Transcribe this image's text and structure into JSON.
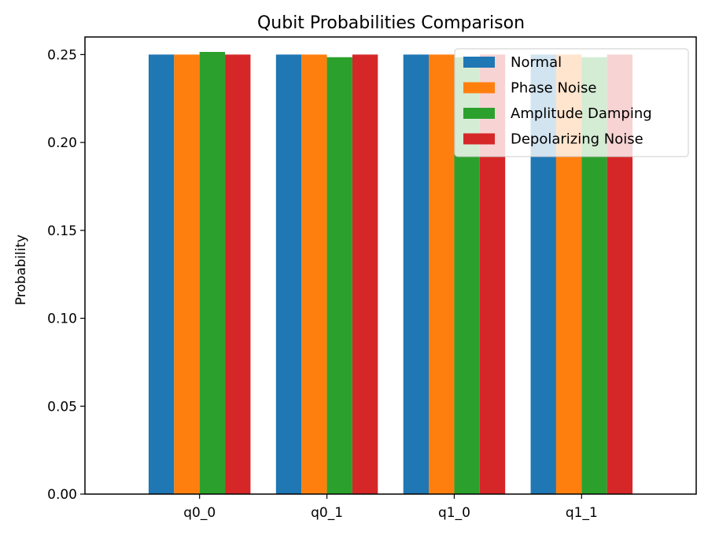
{
  "chart_data": {
    "type": "bar",
    "title": "Qubit Probabilities Comparison",
    "xlabel": "",
    "ylabel": "Probability",
    "categories": [
      "q0_0",
      "q0_1",
      "q1_0",
      "q1_1"
    ],
    "ylim": [
      0,
      0.26
    ],
    "yticks": [
      0.0,
      0.05,
      0.1,
      0.15,
      0.2,
      0.25
    ],
    "ytick_labels": [
      "0.00",
      "0.05",
      "0.10",
      "0.15",
      "0.20",
      "0.25"
    ],
    "grid": false,
    "legend_position": "top-right",
    "series": [
      {
        "name": "Normal",
        "color": "#1f77b4",
        "values": [
          0.25,
          0.25,
          0.25,
          0.25
        ]
      },
      {
        "name": "Phase Noise",
        "color": "#ff7f0e",
        "values": [
          0.25,
          0.25,
          0.25,
          0.25
        ]
      },
      {
        "name": "Amplitude Damping",
        "color": "#2ca02c",
        "values": [
          0.2515,
          0.2485,
          0.2485,
          0.2485
        ]
      },
      {
        "name": "Depolarizing Noise",
        "color": "#d62728",
        "values": [
          0.25,
          0.25,
          0.25,
          0.25
        ]
      }
    ]
  }
}
